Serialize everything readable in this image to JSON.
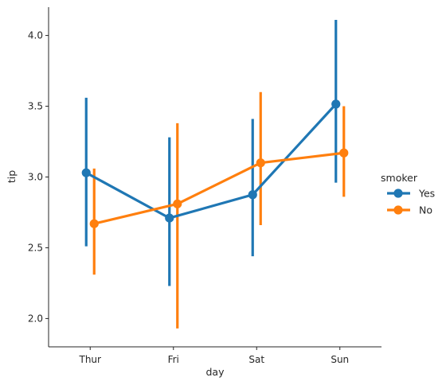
{
  "chart_data": {
    "type": "line",
    "subtype": "pointplot",
    "categories": [
      "Thur",
      "Fri",
      "Sat",
      "Sun"
    ],
    "xlabel": "day",
    "ylabel": "tip",
    "ylim": [
      1.8,
      4.2
    ],
    "yticks": [
      "2.0",
      "2.5",
      "3.0",
      "3.5",
      "4.0"
    ],
    "grid": false,
    "legend": {
      "title": "smoker",
      "placement": "right"
    },
    "series": [
      {
        "name": "Yes",
        "color": "#1f77b4",
        "values": [
          3.03,
          2.71,
          2.875,
          3.515
        ],
        "ci_low": [
          2.51,
          2.23,
          2.44,
          2.96
        ],
        "ci_high": [
          3.56,
          3.28,
          3.41,
          4.11
        ]
      },
      {
        "name": "No",
        "color": "#ff7f0e",
        "values": [
          2.67,
          2.81,
          3.1,
          3.17
        ],
        "ci_low": [
          2.31,
          1.93,
          2.66,
          2.86
        ],
        "ci_high": [
          3.06,
          3.38,
          3.6,
          3.5
        ]
      }
    ]
  }
}
